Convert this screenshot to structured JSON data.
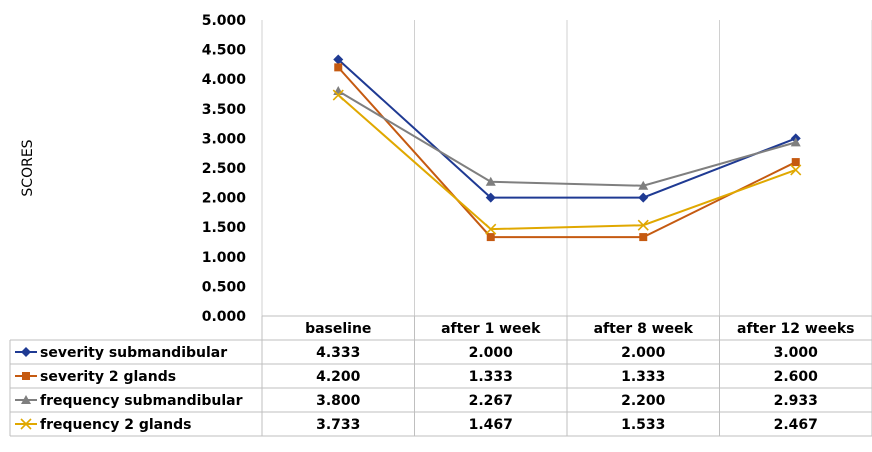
{
  "chart_data": {
    "type": "line",
    "title": "",
    "xlabel": "",
    "ylabel": "SCORES",
    "ylim": [
      0,
      5
    ],
    "yticks": [
      "0.000",
      "0.500",
      "1.000",
      "1.500",
      "2.000",
      "2.500",
      "3.000",
      "3.500",
      "4.000",
      "4.500",
      "5.000"
    ],
    "categories": [
      "baseline",
      "after 1 week",
      "after 8 week",
      "after 12 weeks"
    ],
    "grid": "vertical",
    "legend": "data-table",
    "series": [
      {
        "name": "severity submandibular",
        "color": "#1f3a93",
        "marker": "diamond",
        "values": [
          4.333,
          2.0,
          2.0,
          3.0
        ],
        "labels": [
          "4.333",
          "2.000",
          "2.000",
          "3.000"
        ]
      },
      {
        "name": "severity 2 glands",
        "color": "#c55a11",
        "marker": "square",
        "values": [
          4.2,
          1.333,
          1.333,
          2.6
        ],
        "labels": [
          "4.200",
          "1.333",
          "1.333",
          "2.600"
        ]
      },
      {
        "name": "frequency submandibular",
        "color": "#7f7f7f",
        "marker": "triangle",
        "values": [
          3.8,
          2.267,
          2.2,
          2.933
        ],
        "labels": [
          "3.800",
          "2.267",
          "2.200",
          "2.933"
        ]
      },
      {
        "name": "frequency 2 glands",
        "color": "#e0a800",
        "marker": "x",
        "values": [
          3.733,
          1.467,
          1.533,
          2.467
        ],
        "labels": [
          "3.733",
          "1.467",
          "1.533",
          "2.467"
        ]
      }
    ]
  }
}
